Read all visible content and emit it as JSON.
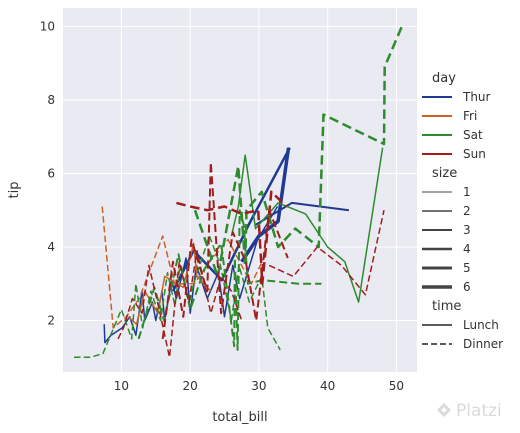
{
  "chart_data": {
    "type": "line",
    "title": "",
    "xlabel": "total_bill",
    "ylabel": "tip",
    "xlim": [
      1.5,
      53
    ],
    "ylim": [
      0.6,
      10.5
    ],
    "xticks": [
      10,
      20,
      30,
      40,
      50
    ],
    "yticks": [
      2,
      4,
      6,
      8,
      10
    ],
    "grid": true,
    "legend_position": "right",
    "legend": {
      "hue_title": "day",
      "hue": [
        {
          "label": "Thur",
          "color": "#1f3a93"
        },
        {
          "label": "Fri",
          "color": "#c8642a"
        },
        {
          "label": "Sat",
          "color": "#2e8b2e"
        },
        {
          "label": "Sun",
          "color": "#a01e1e"
        }
      ],
      "size_title": "size",
      "sizes": [
        {
          "label": "1",
          "width": 1
        },
        {
          "label": "2",
          "width": 1.5
        },
        {
          "label": "3",
          "width": 2
        },
        {
          "label": "4",
          "width": 2.5
        },
        {
          "label": "5",
          "width": 3
        },
        {
          "label": "6",
          "width": 3.5
        }
      ],
      "style_title": "time",
      "styles": [
        {
          "label": "Lunch",
          "dash": "solid"
        },
        {
          "label": "Dinner",
          "dash": "dashed"
        }
      ]
    },
    "series": [
      {
        "day": "Thur",
        "size": "2",
        "time": "Lunch",
        "x": [
          7.5,
          7.6,
          8.5,
          10.1,
          11.2,
          12.1,
          13.0,
          13.4,
          14.5,
          15.0,
          15.9,
          16.3,
          17.3,
          18.0,
          19.4,
          20.0,
          20.9,
          22.5,
          24.1,
          25.0,
          26.2,
          27.2,
          29.8,
          32.7
        ],
        "y": [
          1.9,
          1.4,
          1.6,
          1.8,
          2.1,
          1.6,
          2.8,
          2.0,
          2.5,
          2.0,
          2.8,
          2.0,
          3.1,
          2.6,
          3.7,
          2.2,
          3.5,
          2.6,
          3.3,
          2.1,
          3.5,
          2.6,
          4.2,
          5.1
        ]
      },
      {
        "day": "Thur",
        "size": "4",
        "time": "Lunch",
        "x": [
          17.5,
          20.5,
          24.6,
          28.5,
          34.5
        ],
        "y": [
          2.8,
          3.9,
          3.1,
          4.6,
          6.7
        ]
      },
      {
        "day": "Thur",
        "size": "6",
        "time": "Lunch",
        "x": [
          27.5,
          30.0,
          32.8,
          34.3
        ],
        "y": [
          3.6,
          4.3,
          4.7,
          6.7
        ]
      },
      {
        "day": "Thur",
        "size": "3",
        "time": "Lunch",
        "x": [
          29.5,
          34.8,
          43.1
        ],
        "y": [
          4.6,
          5.2,
          5.0
        ]
      },
      {
        "day": "Fri",
        "size": "2",
        "time": "Lunch",
        "x": [
          11.0,
          12.2,
          13.4,
          15.3,
          16.3,
          19.0,
          20.5,
          21.0,
          23.0
        ],
        "y": [
          2.1,
          1.9,
          2.8,
          2.2,
          3.2,
          2.9,
          4.1,
          3.2,
          2.8
        ]
      },
      {
        "day": "Fri",
        "size": "2",
        "time": "Dinner",
        "x": [
          7.2,
          8.8,
          10.7,
          12.6,
          16.0,
          17.7,
          20.6,
          22.4,
          25.5,
          28.9,
          31.0
        ],
        "y": [
          5.1,
          1.8,
          2.1,
          2.6,
          4.3,
          3.0,
          3.0,
          3.5,
          4.2,
          3.0,
          3.8
        ]
      },
      {
        "day": "Sat",
        "size": "2",
        "time": "Dinner",
        "x": [
          3.1,
          5.5,
          7.3,
          10.0,
          11.5,
          12.1,
          13.1,
          14.3,
          15.7,
          16.7,
          17.8,
          18.5,
          19.9,
          20.5,
          22.8,
          24.4,
          26.0,
          27.1,
          28.6,
          30.4,
          31.3,
          33.1
        ],
        "y": [
          1.0,
          1.0,
          1.1,
          2.3,
          1.5,
          3.0,
          1.8,
          2.8,
          2.0,
          3.3,
          2.4,
          3.5,
          2.5,
          3.0,
          4.3,
          3.5,
          2.0,
          3.5,
          2.5,
          3.2,
          1.8,
          1.2
        ]
      },
      {
        "day": "Sat",
        "size": "3",
        "time": "Dinner",
        "x": [
          12.5,
          14.8,
          16.2,
          18.3,
          20.0,
          22.1,
          24.5,
          26.4,
          26.5,
          26.9,
          27.2,
          27.8,
          28.4,
          30.5,
          35.8,
          39.1
        ],
        "y": [
          1.5,
          2.9,
          2.0,
          3.8,
          2.3,
          3.4,
          4.1,
          1.3,
          3.7,
          1.2,
          5.0,
          4.6,
          3.0,
          3.1,
          3.0,
          3.0
        ]
      },
      {
        "day": "Sat",
        "size": "4",
        "time": "Dinner",
        "x": [
          20.7,
          24.0,
          27.0,
          28.0,
          28.2,
          30.4,
          32.8,
          35.3,
          38.7,
          39.4,
          48.2,
          48.3,
          50.8
        ],
        "y": [
          5.0,
          3.2,
          6.2,
          3.5,
          5.0,
          5.5,
          4.0,
          4.5,
          4.0,
          7.6,
          6.8,
          8.9,
          10.0
        ]
      },
      {
        "day": "Sat",
        "size": "2",
        "time": "Lunch",
        "x": [
          26.0,
          27.0,
          28.0,
          29.5,
          32.8,
          36.8,
          40.0,
          42.5,
          44.5,
          48.0
        ],
        "y": [
          4.3,
          5.1,
          6.5,
          4.5,
          5.2,
          4.9,
          4.0,
          3.6,
          2.5,
          6.7
        ]
      },
      {
        "day": "Sun",
        "size": "2",
        "time": "Dinner",
        "x": [
          9.5,
          10.3,
          11.6,
          13.0,
          14.0,
          15.5,
          17.0,
          18.4,
          19.8,
          21.0,
          23.0,
          24.5,
          26.0,
          27.5
        ],
        "y": [
          1.5,
          1.8,
          2.6,
          2.2,
          3.5,
          2.3,
          1.0,
          3.6,
          2.5,
          3.9,
          2.2,
          3.2,
          2.8,
          2.0
        ]
      },
      {
        "day": "Sun",
        "size": "3",
        "time": "Dinner",
        "x": [
          16.0,
          17.5,
          19.0,
          20.2,
          22.5,
          23.0,
          24.5,
          26.2,
          28.1,
          29.6,
          31.5,
          34.2
        ],
        "y": [
          1.5,
          3.6,
          2.1,
          4.2,
          2.8,
          6.3,
          2.2,
          4.4,
          3.6,
          2.0,
          5.0,
          3.7
        ]
      },
      {
        "day": "Sun",
        "size": "4",
        "time": "Dinner",
        "x": [
          18.0,
          20.0,
          22.5,
          25.0,
          27.5,
          29.9,
          30.5,
          31.8,
          34.0
        ],
        "y": [
          5.2,
          5.1,
          5.0,
          5.1,
          4.9,
          5.0,
          3.0,
          5.5,
          5.1
        ]
      },
      {
        "day": "Sun",
        "size": "2",
        "time": "Dinner",
        "x": [
          31.5,
          35.0,
          38.5,
          42.0,
          45.5,
          48.2
        ],
        "y": [
          3.5,
          3.2,
          4.0,
          3.5,
          2.7,
          5.0
        ]
      }
    ]
  },
  "watermark": {
    "brand": "Platzi"
  }
}
